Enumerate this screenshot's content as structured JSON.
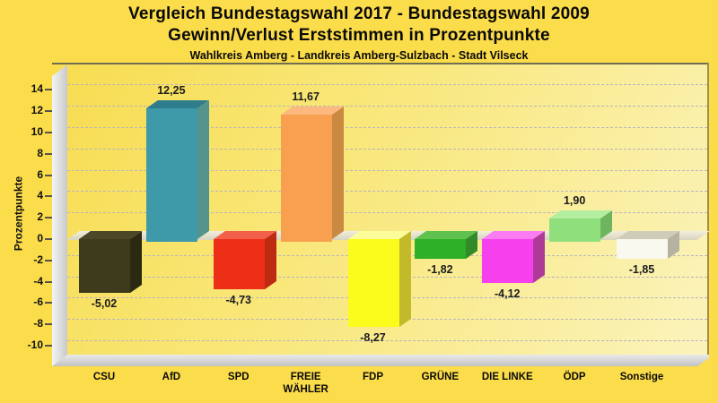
{
  "chart_data": {
    "type": "bar",
    "style": "3d-bars",
    "title": "Vergleich Bundestagswahl 2017 - Bundestagswahl 2009",
    "title_line2": "Gewinn/Verlust Erststimmen in Prozentpunkte",
    "subtitle": "Wahlkreis Amberg - Landkreis Amberg-Sulzbach - Stadt Vilseck",
    "ylabel": "Prozentpunkte",
    "ylim": [
      -10,
      14
    ],
    "ytick_step": 2,
    "grid": "horizontal-dashed",
    "legend": "none",
    "background": "#fbdc4a",
    "plot_background_gradient": [
      "#f8dd52",
      "#fbf3bc"
    ],
    "categories": [
      "CSU",
      "AfD",
      "SPD",
      "FREIE WÄHLER",
      "FDP",
      "GRÜNE",
      "DIE LINKE",
      "ÖDP",
      "Sonstige"
    ],
    "values": [
      -5.02,
      12.25,
      -4.73,
      11.67,
      -8.27,
      -1.82,
      -4.12,
      1.9,
      -1.85
    ],
    "value_labels": [
      "-5,02",
      "12,25",
      "-4,73",
      "11,67",
      "-8,27",
      "-1,82",
      "-4,12",
      "1,90",
      "-1,85"
    ],
    "bar_colors": [
      {
        "party": "CSU",
        "front": "#3e3a1c",
        "side": "#2c2912",
        "top": "#4c4726"
      },
      {
        "party": "AfD",
        "front": "#3e99a8",
        "side": "#55948c",
        "top": "#2f7d8c"
      },
      {
        "party": "SPD",
        "front": "#ee2f17",
        "side": "#bc2b12",
        "top": "#f2604b"
      },
      {
        "party": "FREIE WÄHLER",
        "front": "#f9a050",
        "side": "#c98941",
        "top": "#fbb97e"
      },
      {
        "party": "FDP",
        "front": "#fbfb1c",
        "side": "#c2ba2a",
        "top": "#fcfc9a"
      },
      {
        "party": "GRÜNE",
        "front": "#2eb128",
        "side": "#338a28",
        "top": "#5fc24e"
      },
      {
        "party": "DIE LINKE",
        "front": "#f640ee",
        "side": "#ae3a98",
        "top": "#f97cf3"
      },
      {
        "party": "ÖDP",
        "front": "#8fe07c",
        "side": "#6fb55f",
        "top": "#b3eea0"
      },
      {
        "party": "Sonstige",
        "front": "#faf9ef",
        "side": "#b5b2a0",
        "top": "#cfcdba"
      }
    ]
  }
}
